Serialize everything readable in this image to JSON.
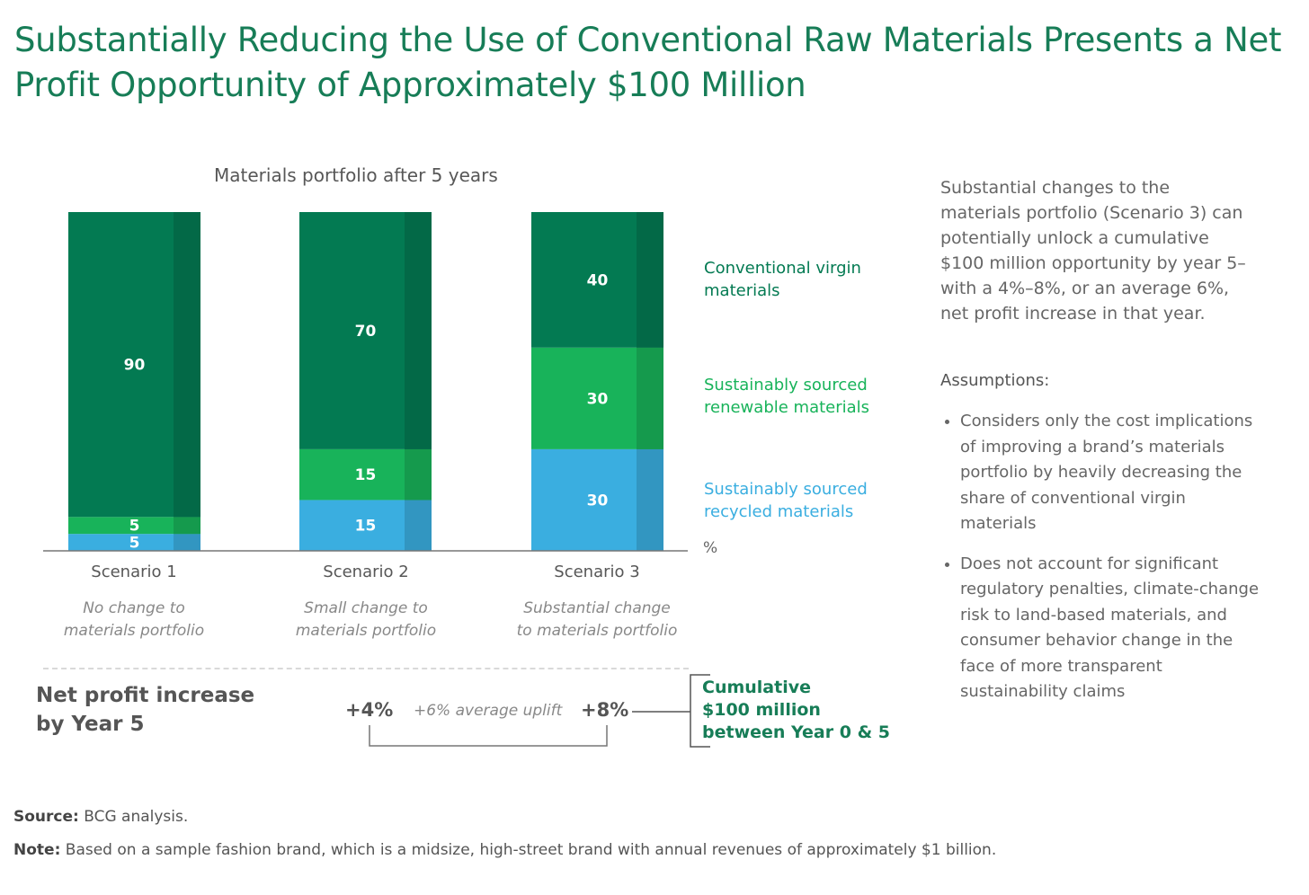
{
  "title": "Substantially Reducing the Use of Conventional Raw Materials Presents a Net Profit Opportunity of Approximately $100 Million",
  "colors": {
    "title": "#177d57",
    "conventional": "#037a52",
    "renewable": "#18b35a",
    "recycled": "#3aaee0"
  },
  "chart_data": {
    "type": "bar",
    "stacked": true,
    "title": "Materials portfolio after 5 years",
    "unit": "%",
    "categories": [
      "Scenario 1",
      "Scenario 2",
      "Scenario 3"
    ],
    "category_descriptions": [
      "No change to materials portfolio",
      "Small change to materials portfolio",
      "Substantial change to materials portfolio"
    ],
    "series": [
      {
        "name": "Sustainably sourced recycled materials",
        "values": [
          5,
          15,
          30
        ],
        "color": "#3aaee0"
      },
      {
        "name": "Sustainably sourced renewable materials",
        "values": [
          5,
          15,
          30
        ],
        "color": "#18b35a"
      },
      {
        "name": "Conventional virgin materials",
        "values": [
          90,
          70,
          40
        ],
        "color": "#037a52"
      }
    ],
    "ylim": [
      0,
      100
    ]
  },
  "legend": {
    "conventional": "Conventional virgin materials",
    "renewable": "Sustainably sourced renewable materials",
    "recycled": "Sustainably sourced recycled materials"
  },
  "scenario_desc_lines": [
    [
      "No change to",
      "materials portfolio"
    ],
    [
      "Small change to",
      "materials portfolio"
    ],
    [
      "Substantial change",
      "to materials portfolio"
    ]
  ],
  "profit": {
    "label_line1": "Net profit increase",
    "label_line2": "by Year 5",
    "low": "+4%",
    "average": "+6% average uplift",
    "high": "+8%",
    "cumulative_line1": "Cumulative",
    "cumulative_line2": "$100 million",
    "cumulative_line3": "between Year 0 & 5"
  },
  "side": {
    "summary": "Substantial changes to the materials portfolio (Scenario 3) can potentially unlock a cumulative $100 million opportunity by year 5–with a 4%–8%, or an average 6%, net profit increase in that year.",
    "assumptions_title": "Assumptions:",
    "assumptions": [
      "Considers only the cost implications of improving a brand’s materials portfolio by heavily decreasing the share of conventional virgin materials",
      "Does not account for significant regulatory penalties, climate-change risk to land-based materials, and consumer behavior change in the face of more transparent sustainability claims"
    ]
  },
  "footer": {
    "source_label": "Source:",
    "source_text": " BCG analysis.",
    "note_label": "Note:",
    "note_text": " Based on a sample fashion brand, which is a midsize, high-street brand with annual revenues of approximately $1 billion."
  }
}
